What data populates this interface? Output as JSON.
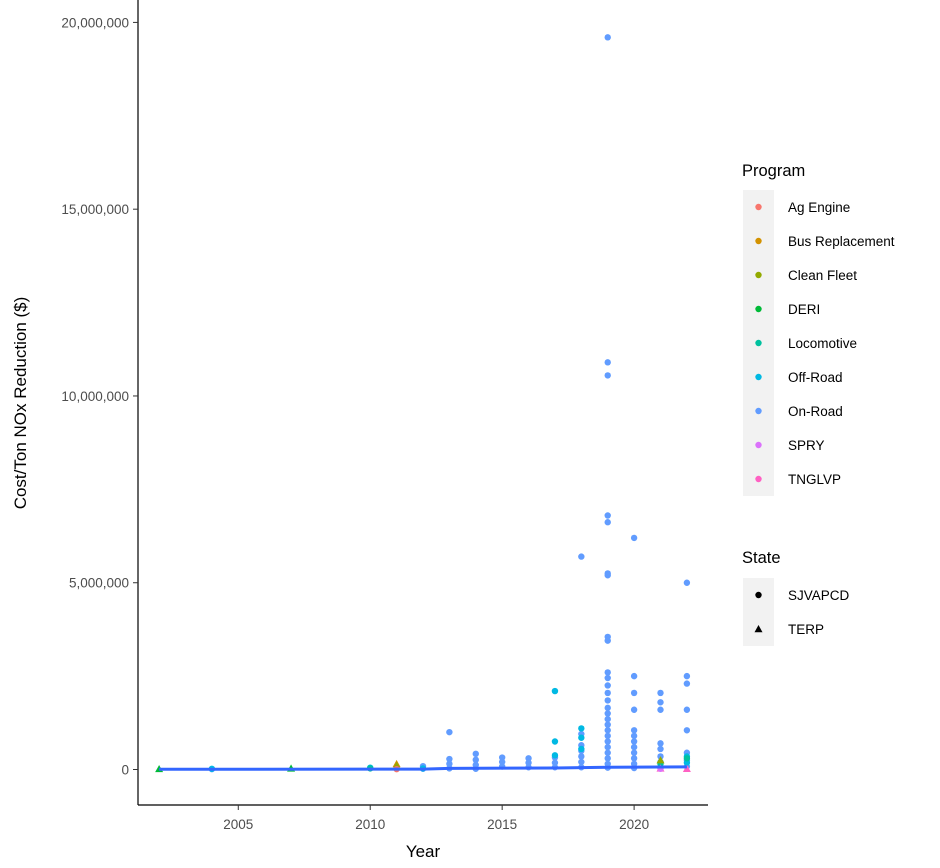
{
  "chart_data": {
    "type": "scatter",
    "xlabel": "Year",
    "ylabel": "Cost/Ton NOx Reduction ($)",
    "xlim": [
      2001.2,
      2022.8
    ],
    "ylim": [
      -950000,
      20600000
    ],
    "x_ticks": [
      {
        "value": 2005,
        "label": "2005"
      },
      {
        "value": 2010,
        "label": "2010"
      },
      {
        "value": 2015,
        "label": "2015"
      },
      {
        "value": 2020,
        "label": "2020"
      }
    ],
    "y_ticks": [
      {
        "value": 0,
        "label": "0"
      },
      {
        "value": 5000000,
        "label": "5,000,000"
      },
      {
        "value": 10000000,
        "label": "10,000,000"
      },
      {
        "value": 15000000,
        "label": "15,000,000"
      },
      {
        "value": 20000000,
        "label": "20,000,000"
      }
    ],
    "grid": false,
    "legend_placement": "right",
    "legends": [
      {
        "title": "Program",
        "kind": "color",
        "entries": [
          {
            "label": "Ag Engine",
            "color": "#F8766D"
          },
          {
            "label": "Bus Replacement",
            "color": "#D39200"
          },
          {
            "label": "Clean Fleet",
            "color": "#93AA00"
          },
          {
            "label": "DERI",
            "color": "#00BA38"
          },
          {
            "label": "Locomotive",
            "color": "#00C19F"
          },
          {
            "label": "Off-Road",
            "color": "#00B9E3"
          },
          {
            "label": "On-Road",
            "color": "#619CFF"
          },
          {
            "label": "SPRY",
            "color": "#DB72FB"
          },
          {
            "label": "TNGLVP",
            "color": "#FF61C3"
          }
        ]
      },
      {
        "title": "State",
        "kind": "shape",
        "entries": [
          {
            "label": "SJVAPCD",
            "shape": "circle"
          },
          {
            "label": "TERP",
            "shape": "triangle"
          }
        ]
      }
    ],
    "trend_line": {
      "color": "#3366FF",
      "points": [
        {
          "x": 2002,
          "y": 5000
        },
        {
          "x": 2012,
          "y": 10000
        },
        {
          "x": 2013,
          "y": 30000
        },
        {
          "x": 2017,
          "y": 40000
        },
        {
          "x": 2019,
          "y": 60000
        },
        {
          "x": 2022,
          "y": 70000
        }
      ]
    },
    "series": [
      {
        "program": "On-Road",
        "shape": "circle",
        "points": [
          {
            "x": 2019,
            "y": 19600000
          },
          {
            "x": 2019,
            "y": 10900000
          },
          {
            "x": 2019,
            "y": 10550000
          },
          {
            "x": 2019,
            "y": 6800000
          },
          {
            "x": 2019,
            "y": 6620000
          },
          {
            "x": 2019,
            "y": 5250000
          },
          {
            "x": 2019,
            "y": 5200000
          },
          {
            "x": 2019,
            "y": 3550000
          },
          {
            "x": 2019,
            "y": 3450000
          },
          {
            "x": 2019,
            "y": 2600000
          },
          {
            "x": 2019,
            "y": 2450000
          },
          {
            "x": 2019,
            "y": 2250000
          },
          {
            "x": 2019,
            "y": 2050000
          },
          {
            "x": 2019,
            "y": 1850000
          },
          {
            "x": 2019,
            "y": 1650000
          },
          {
            "x": 2019,
            "y": 1500000
          },
          {
            "x": 2019,
            "y": 1350000
          },
          {
            "x": 2019,
            "y": 1200000
          },
          {
            "x": 2019,
            "y": 1050000
          },
          {
            "x": 2019,
            "y": 900000
          },
          {
            "x": 2019,
            "y": 750000
          },
          {
            "x": 2019,
            "y": 600000
          },
          {
            "x": 2019,
            "y": 450000
          },
          {
            "x": 2019,
            "y": 300000
          },
          {
            "x": 2019,
            "y": 150000
          },
          {
            "x": 2019,
            "y": 50000
          },
          {
            "x": 2020,
            "y": 6200000
          },
          {
            "x": 2020,
            "y": 2500000
          },
          {
            "x": 2020,
            "y": 2050000
          },
          {
            "x": 2020,
            "y": 1600000
          },
          {
            "x": 2020,
            "y": 1050000
          },
          {
            "x": 2020,
            "y": 900000
          },
          {
            "x": 2020,
            "y": 750000
          },
          {
            "x": 2020,
            "y": 600000
          },
          {
            "x": 2020,
            "y": 450000
          },
          {
            "x": 2020,
            "y": 300000
          },
          {
            "x": 2020,
            "y": 150000
          },
          {
            "x": 2020,
            "y": 40000
          },
          {
            "x": 2022,
            "y": 5000000
          },
          {
            "x": 2022,
            "y": 2500000
          },
          {
            "x": 2022,
            "y": 2300000
          },
          {
            "x": 2022,
            "y": 1600000
          },
          {
            "x": 2022,
            "y": 1050000
          },
          {
            "x": 2022,
            "y": 450000
          },
          {
            "x": 2022,
            "y": 250000
          },
          {
            "x": 2022,
            "y": 80000
          },
          {
            "x": 2018,
            "y": 5700000
          },
          {
            "x": 2018,
            "y": 950000
          },
          {
            "x": 2018,
            "y": 650000
          },
          {
            "x": 2018,
            "y": 500000
          },
          {
            "x": 2018,
            "y": 350000
          },
          {
            "x": 2018,
            "y": 200000
          },
          {
            "x": 2018,
            "y": 60000
          },
          {
            "x": 2021,
            "y": 2050000
          },
          {
            "x": 2021,
            "y": 1800000
          },
          {
            "x": 2021,
            "y": 1600000
          },
          {
            "x": 2021,
            "y": 700000
          },
          {
            "x": 2021,
            "y": 550000
          },
          {
            "x": 2021,
            "y": 350000
          },
          {
            "x": 2021,
            "y": 200000
          },
          {
            "x": 2021,
            "y": 60000
          },
          {
            "x": 2013,
            "y": 1000000
          },
          {
            "x": 2013,
            "y": 280000
          },
          {
            "x": 2013,
            "y": 150000
          },
          {
            "x": 2013,
            "y": 30000
          },
          {
            "x": 2014,
            "y": 420000
          },
          {
            "x": 2014,
            "y": 260000
          },
          {
            "x": 2014,
            "y": 120000
          },
          {
            "x": 2014,
            "y": 20000
          },
          {
            "x": 2015,
            "y": 320000
          },
          {
            "x": 2015,
            "y": 200000
          },
          {
            "x": 2015,
            "y": 80000
          },
          {
            "x": 2016,
            "y": 300000
          },
          {
            "x": 2016,
            "y": 180000
          },
          {
            "x": 2016,
            "y": 60000
          },
          {
            "x": 2017,
            "y": 320000
          },
          {
            "x": 2017,
            "y": 180000
          },
          {
            "x": 2017,
            "y": 60000
          },
          {
            "x": 2012,
            "y": 90000
          },
          {
            "x": 2012,
            "y": 20000
          },
          {
            "x": 2004,
            "y": 10000
          }
        ]
      },
      {
        "program": "Off-Road",
        "shape": "circle",
        "points": [
          {
            "x": 2017,
            "y": 2100000
          },
          {
            "x": 2017,
            "y": 750000
          },
          {
            "x": 2017,
            "y": 380000
          },
          {
            "x": 2018,
            "y": 1100000
          },
          {
            "x": 2018,
            "y": 850000
          },
          {
            "x": 2018,
            "y": 550000
          },
          {
            "x": 2022,
            "y": 350000
          },
          {
            "x": 2022,
            "y": 180000
          },
          {
            "x": 2010,
            "y": 50000
          },
          {
            "x": 2004,
            "y": 20000
          },
          {
            "x": 2012,
            "y": 30000
          }
        ]
      },
      {
        "program": "Locomotive",
        "shape": "circle",
        "points": [
          {
            "x": 2022,
            "y": 300000
          },
          {
            "x": 2021,
            "y": 150000
          },
          {
            "x": 2010,
            "y": 30000
          }
        ]
      },
      {
        "program": "Bus Replacement",
        "shape": "triangle",
        "points": [
          {
            "x": 2011,
            "y": 150000
          },
          {
            "x": 2011,
            "y": 60000
          }
        ]
      },
      {
        "program": "Clean Fleet",
        "shape": "triangle",
        "points": [
          {
            "x": 2021,
            "y": 250000
          },
          {
            "x": 2011,
            "y": 100000
          }
        ]
      },
      {
        "program": "DERI",
        "shape": "triangle",
        "points": [
          {
            "x": 2002,
            "y": 15000
          },
          {
            "x": 2007,
            "y": 30000
          }
        ]
      },
      {
        "program": "TNGLVP",
        "shape": "triangle",
        "points": [
          {
            "x": 2021,
            "y": 30000
          },
          {
            "x": 2022,
            "y": 20000
          }
        ]
      },
      {
        "program": "SPRY",
        "shape": "circle",
        "points": [
          {
            "x": 2021,
            "y": 20000
          }
        ]
      },
      {
        "program": "Ag Engine",
        "shape": "circle",
        "points": [
          {
            "x": 2011,
            "y": 10000
          }
        ]
      }
    ]
  }
}
